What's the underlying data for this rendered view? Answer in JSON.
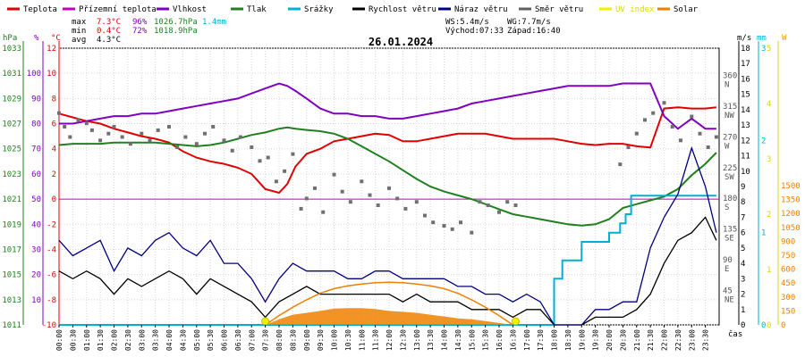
{
  "legend": [
    {
      "label": "Teplota",
      "color": "#e00000"
    },
    {
      "label": "Přízemní teplota",
      "color": "#c000c0"
    },
    {
      "label": "Vlhkost",
      "color": "#8000c0"
    },
    {
      "label": "Tlak",
      "color": "#208020"
    },
    {
      "label": "Srážky",
      "color": "#00b0d0"
    },
    {
      "label": "Rychlost větru",
      "color": "#000000"
    },
    {
      "label": "Náraz větru",
      "color": "#000080"
    },
    {
      "label": "Směr větru",
      "color": "#606060"
    },
    {
      "label": "UV index",
      "color": "#f0f000"
    },
    {
      "label": "Solar",
      "color": "#f08000"
    }
  ],
  "stats": {
    "max": {
      "label": "max",
      "temp": "7.3°C",
      "hum": "96%",
      "press": "1026.7hPa",
      "rain": "1.4mm"
    },
    "min": {
      "label": "min",
      "temp": "0.4°C",
      "hum": "72%",
      "press": "1018.9hPa"
    },
    "avg": {
      "label": "avg",
      "temp": "4.3°C"
    }
  },
  "wind_info": {
    "ws": "WS:5.4m/s",
    "wg": "WG:7.7m/s",
    "sunrise": "Východ:07:33",
    "sunset": "Západ:16:40"
  },
  "chart_data": {
    "type": "line",
    "title": "26.01.2024",
    "xlabel": "čas",
    "axes": {
      "pressure": {
        "unit": "hPa",
        "ticks": [
          "1033",
          "1031",
          "1029",
          "1027",
          "1025",
          "1023",
          "1021",
          "1019",
          "1017",
          "1015",
          "1013",
          "1011"
        ],
        "range": [
          1011,
          1033
        ]
      },
      "humidity": {
        "unit": "%",
        "ticks": [
          "100",
          "90",
          "80",
          "70",
          "60",
          "50",
          "40",
          "30",
          "20",
          "10"
        ],
        "range": [
          0,
          110
        ]
      },
      "temperature": {
        "unit": "°C",
        "ticks": [
          "12",
          "10",
          "8",
          "6",
          "4",
          "2",
          "0",
          "-2",
          "-4",
          "-6",
          "-8",
          "-10"
        ],
        "range": [
          -10,
          12
        ]
      },
      "direction": {
        "ticks": [
          "360\nN",
          "315\nNW",
          "270\nW",
          "225\nSW",
          "180\nS",
          "135\nSE",
          "90\nE",
          "45\nNE"
        ]
      },
      "wind": {
        "unit": "m/s",
        "ticks": [
          "18",
          "17",
          "16",
          "15",
          "14",
          "13",
          "12",
          "11",
          "10",
          "9",
          "8",
          "7",
          "6",
          "5",
          "4",
          "3",
          "2",
          "1",
          "0"
        ],
        "range": [
          0,
          18
        ]
      },
      "rain": {
        "unit": "mm",
        "ticks": [
          "3",
          "2",
          "1",
          "0"
        ],
        "range": [
          0,
          3
        ]
      },
      "uv": {
        "unit": "UV",
        "ticks": [
          "5",
          "4",
          "3",
          "2",
          "1",
          "0"
        ],
        "range": [
          0,
          5
        ]
      },
      "solar": {
        "unit": "W",
        "ticks": [
          "1500",
          "1350",
          "1200",
          "1050",
          "900",
          "750",
          "600",
          "450",
          "300",
          "150",
          "0"
        ],
        "range": [
          0,
          1500
        ]
      }
    },
    "x_ticks": [
      "00:00",
      "00:30",
      "01:00",
      "01:30",
      "02:00",
      "02:30",
      "03:00",
      "03:30",
      "04:00",
      "04:30",
      "05:00",
      "05:30",
      "06:00",
      "06:30",
      "07:00",
      "07:30",
      "08:00",
      "08:30",
      "09:00",
      "09:30",
      "10:00",
      "10:30",
      "11:00",
      "11:30",
      "12:00",
      "12:30",
      "13:00",
      "13:30",
      "14:00",
      "14:30",
      "15:00",
      "15:30",
      "16:00",
      "16:30",
      "17:00",
      "17:30",
      "18:00",
      "18:30",
      "19:00",
      "19:30",
      "20:00",
      "20:30",
      "21:00",
      "21:30",
      "22:00",
      "22:30",
      "23:00",
      "23:30"
    ],
    "series": [
      {
        "name": "Teplota",
        "axis": "temperature",
        "color": "#e00000",
        "x": [
          0,
          0.5,
          1,
          1.5,
          2,
          2.5,
          3,
          3.5,
          4,
          4.5,
          5,
          5.5,
          6,
          6.5,
          7,
          7.5,
          8,
          8.3,
          8.6,
          9,
          9.5,
          10,
          10.5,
          11,
          11.5,
          12,
          12.5,
          13,
          13.5,
          14,
          14.5,
          15,
          15.5,
          16,
          16.5,
          17,
          17.5,
          18,
          18.5,
          19,
          19.5,
          20,
          20.5,
          21,
          21.5,
          22,
          22.5,
          23,
          23.5,
          23.9
        ],
        "y": [
          6.8,
          6.5,
          6.2,
          6.0,
          5.6,
          5.3,
          5.0,
          4.8,
          4.5,
          3.8,
          3.3,
          3.0,
          2.8,
          2.5,
          2.0,
          0.8,
          0.5,
          1.2,
          2.6,
          3.6,
          4.0,
          4.6,
          4.8,
          5.0,
          5.2,
          5.1,
          4.6,
          4.6,
          4.8,
          5.0,
          5.2,
          5.2,
          5.2,
          5.0,
          4.8,
          4.8,
          4.8,
          4.8,
          4.6,
          4.4,
          4.3,
          4.4,
          4.4,
          4.2,
          4.1,
          7.2,
          7.3,
          7.2,
          7.2,
          7.3
        ]
      },
      {
        "name": "Vlhkost",
        "axis": "humidity",
        "color": "#8000c0",
        "x": [
          0,
          0.5,
          1,
          1.5,
          2,
          2.5,
          3,
          3.5,
          4,
          4.5,
          5,
          5.5,
          6,
          6.5,
          7,
          7.5,
          8,
          8.3,
          8.6,
          9,
          9.5,
          10,
          10.5,
          11,
          11.5,
          12,
          12.5,
          13,
          13.5,
          14,
          14.5,
          15,
          15.5,
          16,
          16.5,
          17,
          17.5,
          18,
          18.5,
          19,
          19.5,
          20,
          20.5,
          21,
          21.5,
          22,
          22.5,
          23,
          23.5,
          23.9
        ],
        "y": [
          80,
          80,
          81,
          82,
          83,
          83,
          84,
          84,
          85,
          86,
          87,
          88,
          89,
          90,
          92,
          94,
          96,
          95,
          93,
          90,
          86,
          84,
          84,
          83,
          83,
          82,
          82,
          83,
          84,
          85,
          86,
          88,
          89,
          90,
          91,
          92,
          93,
          94,
          95,
          95,
          95,
          95,
          96,
          96,
          96,
          83,
          78,
          82,
          78,
          78
        ]
      },
      {
        "name": "Tlak",
        "axis": "pressure",
        "color": "#208020",
        "x": [
          0,
          0.5,
          1,
          1.5,
          2,
          2.5,
          3,
          3.5,
          4,
          4.5,
          5,
          5.5,
          6,
          6.5,
          7,
          7.5,
          8,
          8.3,
          8.6,
          9,
          9.5,
          10,
          10.5,
          11,
          11.5,
          12,
          12.5,
          13,
          13.5,
          14,
          14.5,
          15,
          15.5,
          16,
          16.5,
          17,
          17.5,
          18,
          18.5,
          19,
          19.5,
          20,
          20.5,
          21,
          21.5,
          22,
          22.5,
          23,
          23.5,
          23.9
        ],
        "y": [
          1025.3,
          1025.4,
          1025.4,
          1025.4,
          1025.5,
          1025.5,
          1025.5,
          1025.5,
          1025.4,
          1025.3,
          1025.2,
          1025.3,
          1025.5,
          1025.8,
          1026.1,
          1026.3,
          1026.6,
          1026.7,
          1026.6,
          1026.5,
          1026.4,
          1026.2,
          1025.8,
          1025.2,
          1024.6,
          1024.0,
          1023.3,
          1022.6,
          1022.0,
          1021.6,
          1021.3,
          1021.0,
          1020.6,
          1020.2,
          1019.8,
          1019.6,
          1019.4,
          1019.2,
          1019.0,
          1018.9,
          1019.0,
          1019.4,
          1020.3,
          1020.6,
          1020.9,
          1021.2,
          1021.8,
          1022.9,
          1023.8,
          1024.7
        ]
      },
      {
        "name": "Srážky",
        "axis": "rain",
        "color": "#00b0d0",
        "x": [
          0,
          17.8,
          18.0,
          18.3,
          18.6,
          19.0,
          19.5,
          20.0,
          20.4,
          20.6,
          20.8,
          21.0,
          22.0,
          23.0,
          23.9
        ],
        "y": [
          0,
          0,
          0.5,
          0.7,
          0.7,
          0.9,
          0.9,
          1.0,
          1.1,
          1.2,
          1.4,
          1.4,
          1.4,
          1.4,
          1.4
        ]
      },
      {
        "name": "Rychlost větru",
        "axis": "wind",
        "color": "#000000",
        "x": [
          0,
          0.5,
          1,
          1.5,
          2,
          2.5,
          3,
          3.5,
          4,
          4.5,
          5,
          5.5,
          6,
          6.5,
          7,
          7.5,
          8,
          8.5,
          9,
          9.5,
          10,
          10.5,
          11,
          11.5,
          12,
          12.5,
          13,
          13.5,
          14,
          14.5,
          15,
          15.5,
          16,
          16.5,
          17,
          17.5,
          18,
          18.5,
          19,
          19.5,
          20,
          20.5,
          21,
          21.5,
          22,
          22.5,
          23,
          23.5,
          23.9
        ],
        "y": [
          3.5,
          3.0,
          3.5,
          3.0,
          2.0,
          3.0,
          2.5,
          3.0,
          3.5,
          3.0,
          2.0,
          3.0,
          2.5,
          2.0,
          1.5,
          0.5,
          1.5,
          2.0,
          2.5,
          2.0,
          2.0,
          2.0,
          2.0,
          2.0,
          2.0,
          1.5,
          2.0,
          1.5,
          1.5,
          1.5,
          1.0,
          1.0,
          1.0,
          0.5,
          1.0,
          1.0,
          0,
          0,
          0,
          0.5,
          0.5,
          0.5,
          1.0,
          2.0,
          4.0,
          5.5,
          6.0,
          7.0,
          5.5
        ]
      },
      {
        "name": "Náraz větru",
        "axis": "wind",
        "color": "#000080",
        "x": [
          0,
          0.5,
          1,
          1.5,
          2,
          2.5,
          3,
          3.5,
          4,
          4.5,
          5,
          5.5,
          6,
          6.5,
          7,
          7.5,
          8,
          8.5,
          9,
          9.5,
          10,
          10.5,
          11,
          11.5,
          12,
          12.5,
          13,
          13.5,
          14,
          14.5,
          15,
          15.5,
          16,
          16.5,
          17,
          17.5,
          18,
          18.5,
          19,
          19.5,
          20,
          20.5,
          21,
          21.5,
          22,
          22.5,
          23,
          23.5,
          23.9
        ],
        "y": [
          5.5,
          4.5,
          5.0,
          5.5,
          3.5,
          5.0,
          4.5,
          5.5,
          6.0,
          5.0,
          4.5,
          5.5,
          4.0,
          4.0,
          3.0,
          1.5,
          3.0,
          4.0,
          3.5,
          3.5,
          3.5,
          3.0,
          3.0,
          3.5,
          3.5,
          3.0,
          3.0,
          3.0,
          3.0,
          2.5,
          2.5,
          2.0,
          2.0,
          1.5,
          2.0,
          1.5,
          0,
          0,
          0,
          1.0,
          1.0,
          1.5,
          1.5,
          5.0,
          7.0,
          8.5,
          11.5,
          9.0,
          6.0
        ]
      },
      {
        "name": "Solar",
        "axis": "solar",
        "color": "#f08000",
        "x": [
          7.5,
          8.0,
          8.5,
          9.0,
          9.5,
          10.0,
          10.5,
          11.0,
          11.5,
          12.0,
          12.5,
          13.0,
          13.5,
          14.0,
          14.5,
          15.0,
          15.5,
          16.0,
          16.5
        ],
        "y": [
          0,
          60,
          110,
          130,
          150,
          175,
          180,
          180,
          170,
          150,
          140,
          130,
          110,
          90,
          70,
          60,
          40,
          20,
          0
        ]
      },
      {
        "name": "Solar teoretický",
        "axis": "solar",
        "color": "#f08000",
        "x": [
          7.5,
          8.0,
          8.5,
          9.0,
          9.5,
          10.0,
          10.5,
          11.0,
          11.5,
          12.0,
          12.5,
          13.0,
          13.5,
          14.0,
          14.5,
          15.0,
          15.5,
          16.0,
          16.5
        ],
        "y": [
          0,
          100,
          190,
          270,
          340,
          390,
          420,
          440,
          455,
          460,
          455,
          440,
          420,
          390,
          340,
          270,
          190,
          100,
          0
        ]
      }
    ],
    "wind_direction": {
      "axis": "direction",
      "x": [
        0,
        0.2,
        0.4,
        0.7,
        1.0,
        1.2,
        1.5,
        1.8,
        2.0,
        2.3,
        2.6,
        3.0,
        3.3,
        3.6,
        4.0,
        4.3,
        4.6,
        5.0,
        5.3,
        5.6,
        6.0,
        6.3,
        6.6,
        7.0,
        7.3,
        7.6,
        7.9,
        8.2,
        8.5,
        8.8,
        9.0,
        9.3,
        9.6,
        10.0,
        10.3,
        10.6,
        11.0,
        11.3,
        11.6,
        12.0,
        12.3,
        12.6,
        13.0,
        13.3,
        13.6,
        14.0,
        14.3,
        14.6,
        15.0,
        15.3,
        15.6,
        16.0,
        16.3,
        16.6,
        20.4,
        20.7,
        21.0,
        21.3,
        21.6,
        22.0,
        22.3,
        22.6,
        23.0,
        23.3,
        23.6,
        23.9
      ],
      "y": [
        310,
        290,
        275,
        300,
        295,
        285,
        270,
        280,
        290,
        275,
        265,
        280,
        270,
        285,
        290,
        260,
        275,
        265,
        280,
        290,
        270,
        255,
        275,
        260,
        240,
        245,
        210,
        225,
        250,
        170,
        185,
        200,
        165,
        220,
        195,
        180,
        210,
        190,
        175,
        200,
        185,
        170,
        180,
        160,
        150,
        145,
        140,
        150,
        135,
        180,
        175,
        165,
        180,
        175,
        235,
        260,
        280,
        300,
        310,
        325,
        290,
        270,
        305,
        280,
        260,
        275
      ]
    },
    "uv_index": {
      "axis": "uv",
      "x": [
        7.5,
        16.6
      ],
      "y": [
        0,
        0
      ]
    }
  }
}
